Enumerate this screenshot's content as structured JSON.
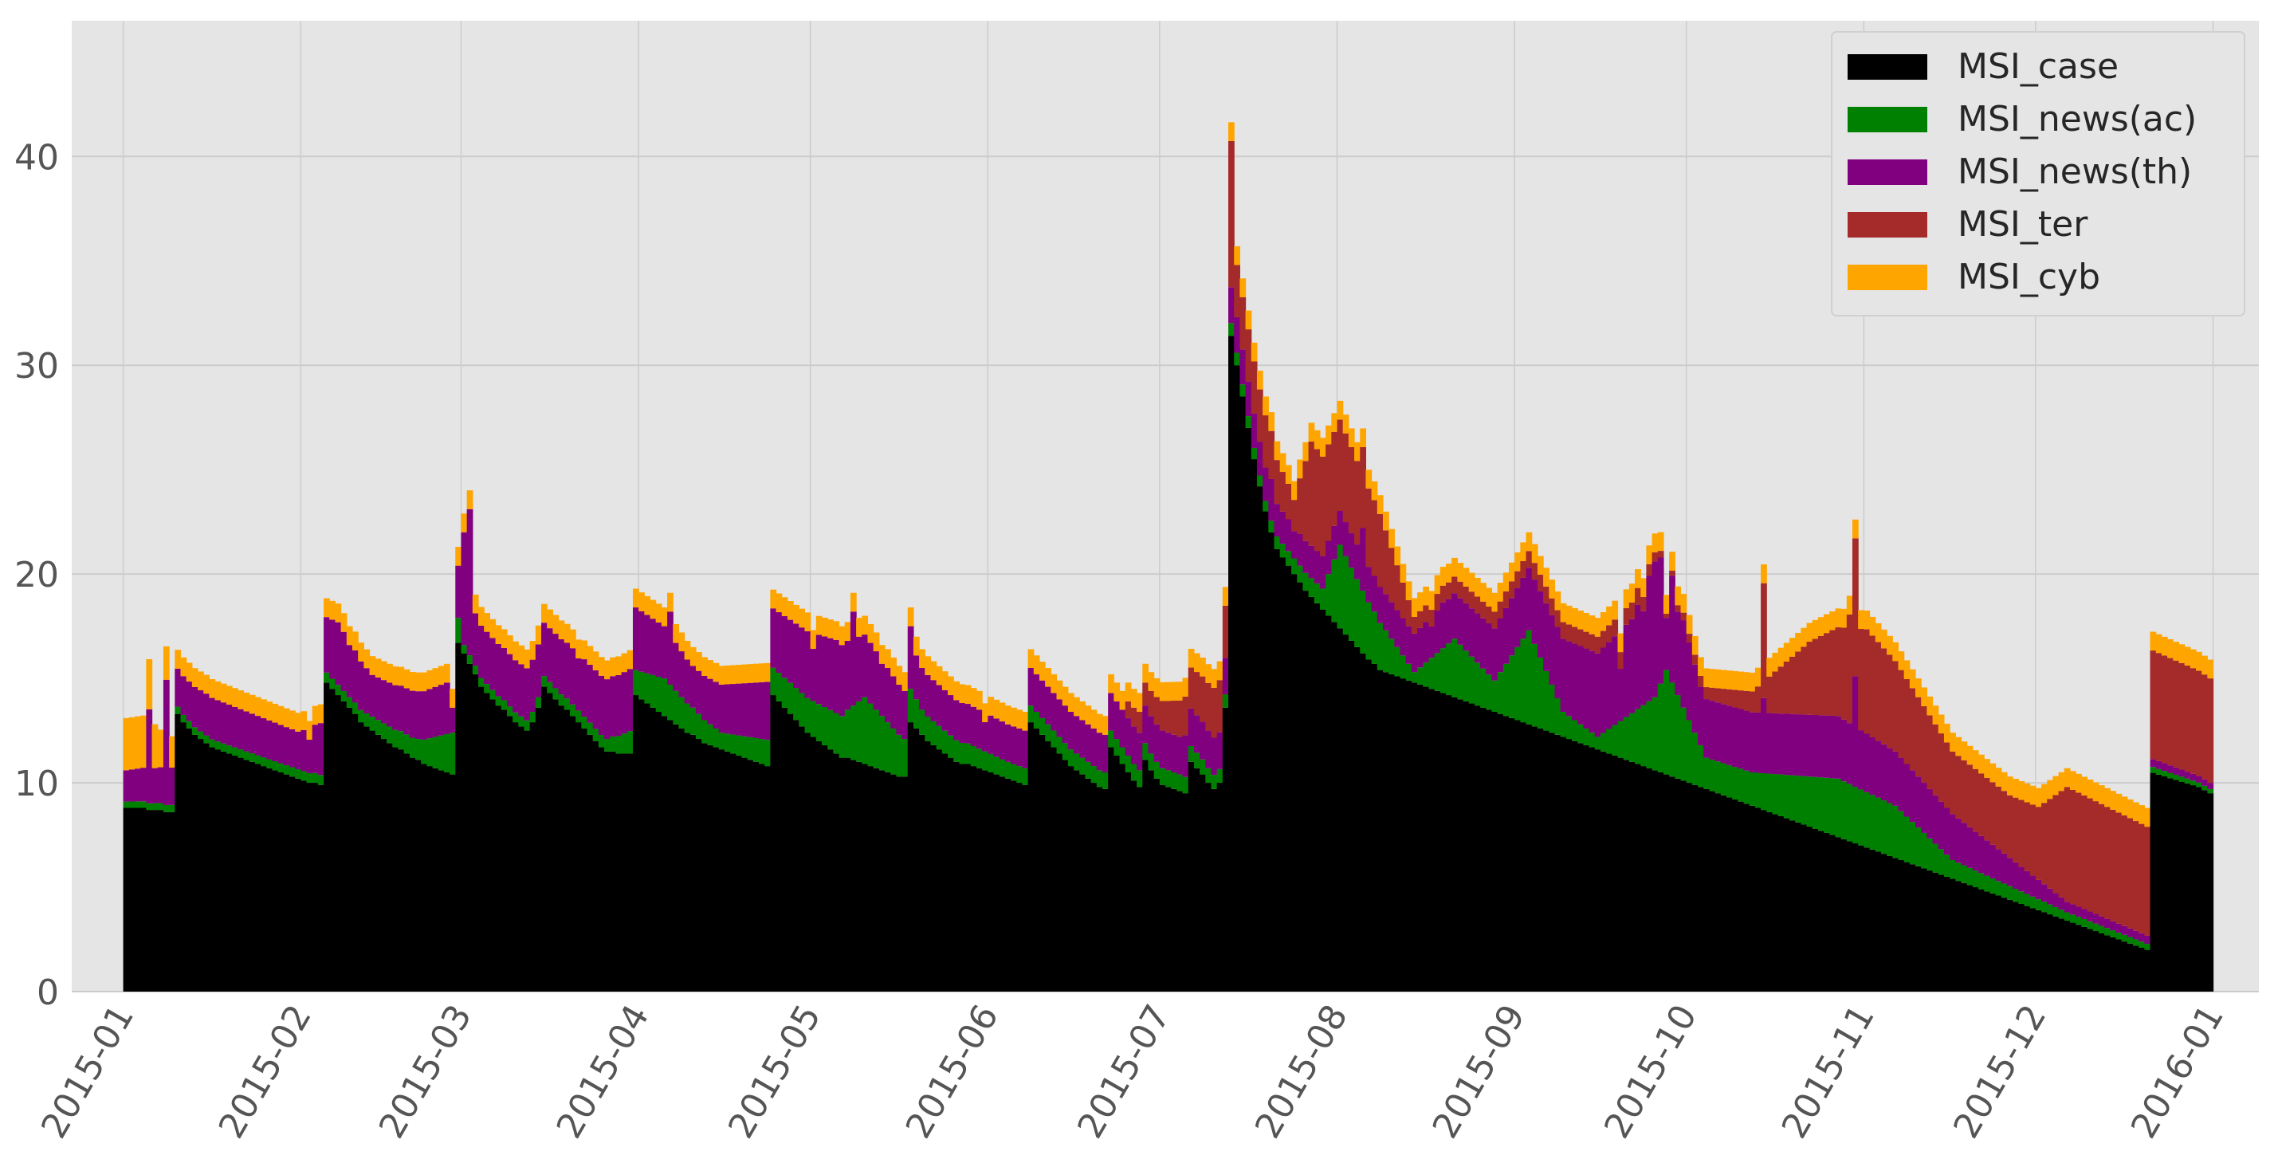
{
  "chart_data": {
    "type": "bar",
    "stacked": true,
    "title": "",
    "xlabel": "",
    "ylabel": "",
    "x_range": [
      "2014-12-23",
      "2016-01-09"
    ],
    "x_start": "2015-01-01",
    "x_end": "2015-12-31",
    "ylim": [
      0,
      46.5
    ],
    "y_ticks": [
      0,
      10,
      20,
      30,
      40
    ],
    "x_ticks": [
      "2015-01",
      "2015-02",
      "2015-03",
      "2015-04",
      "2015-05",
      "2015-06",
      "2015-07",
      "2015-08",
      "2015-09",
      "2015-10",
      "2015-11",
      "2015-12",
      "2016-01"
    ],
    "grid": true,
    "background": "#e5e5e5",
    "legend_position": "top-right",
    "series": [
      {
        "name": "MSI_case",
        "color": "#000000",
        "level_profile": [
          [
            1,
            8.8
          ],
          [
            4,
            8.8
          ],
          [
            9,
            8.6
          ],
          [
            10,
            13.3
          ],
          [
            17,
            11.7
          ],
          [
            31,
            10.3
          ],
          [
            37,
            9.9
          ],
          [
            38,
            14.8
          ],
          [
            44,
            12.9
          ],
          [
            51,
            11.6
          ],
          [
            59,
            10.5
          ],
          [
            61,
            16.7
          ],
          [
            65,
            14.6
          ],
          [
            73,
            12.5
          ],
          [
            76,
            14.6
          ],
          [
            86,
            11.5
          ],
          [
            90,
            11.4
          ],
          [
            95,
            14.2
          ],
          [
            110,
            11.6
          ],
          [
            121,
            10.8
          ],
          [
            126,
            14.2
          ],
          [
            140,
            11.2
          ],
          [
            151,
            10.3
          ],
          [
            156,
            12.9
          ],
          [
            171,
            10.9
          ],
          [
            182,
            9.9
          ],
          [
            190,
            12.9
          ],
          [
            201,
            10.6
          ],
          [
            210,
            9.7
          ],
          [
            213,
            11.7
          ],
          [
            224,
            9.8
          ],
          [
            226,
            11.1
          ],
          [
            233,
            9.9
          ],
          [
            244,
            9.5
          ],
          [
            248,
            11.0
          ],
          [
            254,
            9.7
          ],
          [
            258,
            10.0
          ],
          [
            267,
            13.6
          ],
          [
            268,
            31.4
          ],
          [
            282,
            20.8
          ],
          [
            300,
            15.4
          ],
          [
            320,
            13.2
          ],
          [
            336,
            12.2
          ],
          [
            345,
            11.8
          ],
          [
            350,
            10.9
          ],
          [
            363,
            9.8
          ],
          [
            365,
            9.5
          ]
        ],
        "values": [
          8.8,
          8.8,
          8.8,
          8.8,
          8.7,
          8.7,
          8.7,
          8.6,
          8.6,
          13.3,
          12.9,
          12.6,
          12.3,
          12.1,
          11.9,
          11.7,
          11.6,
          11.5,
          11.4,
          11.3,
          11.2,
          11.1,
          11.0,
          10.9,
          10.8,
          10.7,
          10.6,
          10.5,
          10.4,
          10.3,
          10.2,
          10.1,
          10.0,
          10.0,
          9.9,
          14.8,
          14.5,
          14.2,
          13.9,
          13.6,
          13.3,
          12.9,
          12.7,
          12.5,
          12.3,
          12.1,
          11.9,
          11.7,
          11.6,
          11.4,
          11.2,
          11.1,
          10.9,
          10.8,
          10.7,
          10.6,
          10.5,
          10.4,
          16.7,
          16.2,
          15.7,
          15.2,
          14.6,
          14.3,
          14.0,
          13.7,
          13.5,
          13.2,
          12.9,
          12.7,
          12.5,
          12.9,
          13.6,
          14.6,
          14.3,
          14.0,
          13.7,
          13.5,
          13.2,
          12.9,
          12.6,
          12.3,
          12.0,
          11.7,
          11.5,
          11.5,
          11.4,
          11.4,
          11.4,
          14.2,
          14.0,
          13.8,
          13.6,
          13.4,
          13.2,
          13.0,
          12.8,
          12.6,
          12.4,
          12.3,
          12.1,
          11.9,
          11.8,
          11.7,
          11.6,
          11.5,
          11.4,
          11.3,
          11.2,
          11.1,
          11.0,
          10.9,
          10.8,
          14.2,
          13.9,
          13.6,
          13.3,
          13.0,
          12.7,
          12.4,
          12.2,
          12.0,
          11.8,
          11.6,
          11.4,
          11.2,
          11.2,
          11.1,
          11.0,
          10.9,
          10.8,
          10.7,
          10.6,
          10.5,
          10.4,
          10.3,
          10.3,
          12.9,
          12.6,
          12.3,
          12.0,
          11.8,
          11.6,
          11.4,
          11.2,
          11.0,
          10.9,
          10.9,
          10.8,
          10.7,
          10.6,
          10.5,
          10.4,
          10.3,
          10.2,
          10.1,
          10.0,
          9.9,
          12.9,
          12.6,
          12.3,
          12.0,
          11.7,
          11.4,
          11.1,
          10.8,
          10.6,
          10.4,
          10.2,
          10.0,
          9.8,
          9.7,
          11.7,
          11.3,
          10.9,
          10.5,
          10.1,
          9.8,
          11.1,
          10.6,
          10.2,
          9.9,
          9.8,
          9.7,
          9.6,
          9.5,
          11.0,
          10.7,
          10.4,
          10.0,
          9.7,
          10.0,
          13.6,
          31.4,
          30.0,
          28.5,
          27.0,
          25.5,
          24.2,
          23.0,
          22.0,
          21.2,
          20.8,
          20.4,
          20.0,
          19.6,
          19.2,
          18.9,
          18.6,
          18.3,
          18.0,
          17.7,
          17.4,
          17.1,
          16.8,
          16.5,
          16.2,
          15.9,
          15.7,
          15.4,
          15.3,
          15.2,
          15.1,
          15.0,
          14.9,
          14.8,
          14.7,
          14.6,
          14.5,
          14.4,
          14.3,
          14.2,
          14.1,
          14.0,
          13.9,
          13.8,
          13.7,
          13.6,
          13.5,
          13.4,
          13.3,
          13.2,
          13.1,
          13.0,
          12.9,
          12.8,
          12.7,
          12.6,
          12.5,
          12.4,
          12.3,
          12.2,
          12.1,
          12.0,
          11.9,
          11.8,
          11.7,
          11.6,
          11.5,
          11.4,
          11.3,
          11.2,
          11.1,
          11.0,
          10.9,
          10.8,
          10.7,
          10.6,
          10.5,
          10.4,
          10.3,
          10.2,
          10.1,
          10.0,
          9.9,
          9.8,
          9.7,
          9.6,
          9.5,
          9.4,
          9.3,
          9.2,
          9.1,
          9.0,
          8.9,
          8.8,
          8.7,
          8.6,
          8.5,
          8.4,
          8.3,
          8.2,
          8.1,
          8.0,
          7.9,
          7.8,
          7.7,
          7.6,
          7.5,
          7.4,
          7.3,
          7.2,
          7.1,
          7.0,
          6.9,
          6.8,
          6.7,
          6.6,
          6.5,
          6.4,
          6.3,
          6.2,
          6.1,
          6.0,
          5.9,
          5.8,
          5.7,
          5.6,
          5.5,
          5.4,
          5.3,
          5.2,
          5.1,
          5.0,
          4.9,
          4.8,
          4.7,
          4.6,
          4.5,
          4.4,
          4.3,
          4.2,
          4.1,
          4.0,
          3.9,
          3.8,
          3.7,
          3.6,
          3.5,
          3.4,
          3.3,
          3.2,
          3.1,
          3.0,
          2.9,
          2.8,
          2.7,
          2.6,
          2.5,
          2.4,
          2.3,
          2.2,
          2.1,
          2.0
        ]
      },
      {
        "name": "MSI_news(ac)",
        "color": "#008000",
        "level_profile": [
          [
            1,
            0.3
          ],
          [
            40,
            0.5
          ],
          [
            52,
            1.0
          ],
          [
            58,
            2.0
          ],
          [
            60,
            0.4
          ],
          [
            85,
            0.6
          ],
          [
            95,
            1.8
          ],
          [
            105,
            0.8
          ],
          [
            126,
            2.0
          ],
          [
            130,
            3.2
          ],
          [
            140,
            1.2
          ],
          [
            155,
            0.8
          ],
          [
            185,
            0.8
          ],
          [
            200,
            0.5
          ],
          [
            210,
            1.0
          ],
          [
            213,
            4.0
          ],
          [
            221,
            2.0
          ],
          [
            226,
            0.5
          ],
          [
            233,
            2.8
          ],
          [
            240,
            1.5
          ],
          [
            246,
            4.5
          ],
          [
            252,
            1.2
          ],
          [
            258,
            0.6
          ],
          [
            268,
            3.5
          ],
          [
            270,
            5.0
          ],
          [
            277,
            1.5
          ],
          [
            285,
            1.6
          ],
          [
            300,
            2.8
          ],
          [
            310,
            2.5
          ],
          [
            320,
            0.9
          ],
          [
            340,
            0.4
          ],
          [
            365,
            0.2
          ]
        ]
      },
      {
        "name": "MSI_news(th)",
        "color": "#800080",
        "level_profile": [
          [
            1,
            1.5
          ],
          [
            15,
            2.0
          ],
          [
            31,
            1.8
          ],
          [
            38,
            3.0
          ],
          [
            44,
            2.0
          ],
          [
            58,
            2.5
          ],
          [
            72,
            2.5
          ],
          [
            90,
            3.0
          ],
          [
            100,
            2.0
          ],
          [
            125,
            3.5
          ],
          [
            140,
            2.0
          ],
          [
            155,
            1.8
          ],
          [
            175,
            1.8
          ],
          [
            190,
            1.8
          ],
          [
            205,
            1.5
          ],
          [
            225,
            1.8
          ],
          [
            240,
            2.5
          ],
          [
            264,
            4.5
          ],
          [
            268,
            6.5
          ],
          [
            276,
            2.8
          ],
          [
            300,
            3.0
          ],
          [
            320,
            2.2
          ],
          [
            340,
            0.5
          ],
          [
            365,
            0.3
          ]
        ],
        "spikes": [
          [
            5,
            4.5
          ],
          [
            8,
            6.0
          ],
          [
            33,
            1.6
          ],
          [
            40,
            2.5
          ],
          [
            58,
            1.2
          ],
          [
            60,
            5.4
          ],
          [
            61,
            7.0
          ],
          [
            80,
            2.5
          ],
          [
            96,
            3.5
          ],
          [
            121,
            2.5
          ],
          [
            128,
            4.5
          ],
          [
            133,
            2.5
          ],
          [
            138,
            3.0
          ],
          [
            151,
            1.4
          ],
          [
            186,
            2.0
          ],
          [
            201,
            2.0
          ],
          [
            205,
            1.3
          ],
          [
            217,
            3.0
          ],
          [
            229,
            1.5
          ],
          [
            231,
            2.2
          ],
          [
            262,
            2.5
          ],
          [
            266,
            4.5
          ],
          [
            270,
            2.5
          ],
          [
            272,
            4.0
          ],
          [
            287,
            3.6
          ],
          [
            303,
            5.3
          ]
        ]
      },
      {
        "name": "MSI_ter",
        "color": "#a52a2a",
        "level_profile": [
          [
            1,
            0.0
          ],
          [
            175,
            0.0
          ],
          [
            176,
            0.8
          ],
          [
            180,
            1.2
          ],
          [
            192,
            2.5
          ],
          [
            200,
            2.5
          ],
          [
            205,
            1.5
          ],
          [
            208,
            5.0
          ],
          [
            220,
            3.5
          ],
          [
            226,
            0.8
          ],
          [
            240,
            0.8
          ],
          [
            265,
            0.8
          ],
          [
            270,
            0.2
          ],
          [
            285,
            1.0
          ],
          [
            295,
            3.5
          ],
          [
            305,
            5.0
          ],
          [
            320,
            3.0
          ],
          [
            330,
            3.0
          ],
          [
            335,
            3.5
          ],
          [
            340,
            5.5
          ],
          [
            365,
            5.0
          ]
        ],
        "spikes": [
          [
            194,
            7.0
          ],
          [
            287,
            5.5
          ],
          [
            302,
            5.2
          ],
          [
            303,
            6.6
          ]
        ]
      },
      {
        "name": "MSI_cyb",
        "color": "#ffa500",
        "level_profile": [
          [
            1,
            0.9
          ],
          [
            365,
            0.9
          ]
        ],
        "spikes": [
          [
            1,
            2.5
          ],
          [
            2,
            2.5
          ],
          [
            3,
            2.5
          ],
          [
            4,
            2.5
          ],
          [
            5,
            2.4
          ],
          [
            6,
            2.1
          ],
          [
            7,
            1.8
          ],
          [
            8,
            1.6
          ],
          [
            9,
            1.5
          ]
        ]
      }
    ]
  },
  "legend": {
    "items": [
      {
        "label": "MSI_case",
        "color": "#000000"
      },
      {
        "label": "MSI_news(ac)",
        "color": "#008000"
      },
      {
        "label": "MSI_news(th)",
        "color": "#800080"
      },
      {
        "label": "MSI_ter",
        "color": "#a52a2a"
      },
      {
        "label": "MSI_cyb",
        "color": "#ffa500"
      }
    ]
  }
}
